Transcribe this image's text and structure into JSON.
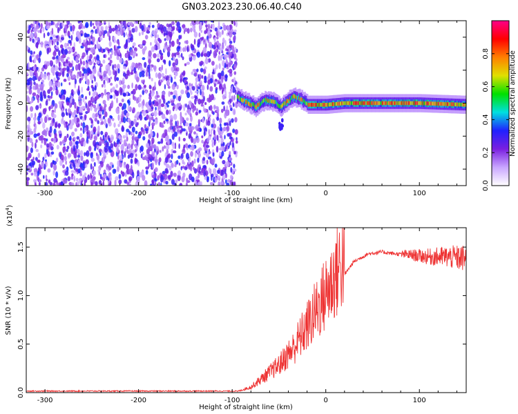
{
  "title": "GN03.2023.230.06.40.C40",
  "chart_data": [
    {
      "type": "heatmap",
      "xlabel": "Height of straight line (km)",
      "ylabel": "Frequency (Hz)",
      "xlim": [
        -320,
        150
      ],
      "ylim": [
        -50,
        50
      ],
      "xticks": [
        -300,
        -200,
        -100,
        0,
        100
      ],
      "yticks": [
        -40,
        -20,
        0,
        20,
        40
      ],
      "colorbar": {
        "label": "Normalized spectral amplitude",
        "range": [
          0,
          1
        ],
        "ticks": [
          "0.0",
          "0.2",
          "0.4",
          "0.6",
          "0.8"
        ],
        "colors": [
          "#ffffff",
          "#c9a6ff",
          "#7a1fe0",
          "#2020ff",
          "#00e0e0",
          "#00e000",
          "#e0e000",
          "#ff8000",
          "#ff0000",
          "#ff0088"
        ]
      },
      "features": {
        "noise_region_x": [
          -320,
          -95
        ],
        "noise_amplitude": [
          0.1,
          0.35
        ],
        "signal_trace": [
          {
            "x": -95,
            "y": 3
          },
          {
            "x": -85,
            "y": 0
          },
          {
            "x": -75,
            "y": -3
          },
          {
            "x": -65,
            "y": 1
          },
          {
            "x": -55,
            "y": 0
          },
          {
            "x": -48,
            "y": -3
          },
          {
            "x": -42,
            "y": 0
          },
          {
            "x": -35,
            "y": 3
          },
          {
            "x": -28,
            "y": 2
          },
          {
            "x": -20,
            "y": -1
          },
          {
            "x": -10,
            "y": -1
          },
          {
            "x": 0,
            "y": -1
          },
          {
            "x": 20,
            "y": 0
          },
          {
            "x": 60,
            "y": 0
          },
          {
            "x": 100,
            "y": 0
          },
          {
            "x": 150,
            "y": -1
          }
        ],
        "signal_peak_amplitude": 0.95
      }
    },
    {
      "type": "line",
      "xlabel": "Height of straight line (km)",
      "ylabel": "SNR (10 * v/v)",
      "y_multiplier": "(x10",
      "y_multiplier_exp": "4",
      "y_multiplier_close": ")",
      "xlim": [
        -320,
        150
      ],
      "ylim": [
        0,
        1.7
      ],
      "xticks": [
        -300,
        -200,
        -100,
        0,
        100
      ],
      "yticks": [
        "0.0",
        "0.5",
        "1.0",
        "1.5"
      ],
      "color": "#ee3333",
      "envelope": [
        {
          "x": -320,
          "y": 0.01
        },
        {
          "x": -95,
          "y": 0.01
        },
        {
          "x": -80,
          "y": 0.05
        },
        {
          "x": -65,
          "y": 0.15
        },
        {
          "x": -50,
          "y": 0.25
        },
        {
          "x": -35,
          "y": 0.4
        },
        {
          "x": -20,
          "y": 0.6
        },
        {
          "x": -10,
          "y": 0.75
        },
        {
          "x": 0,
          "y": 0.9
        },
        {
          "x": 15,
          "y": 1.15
        },
        {
          "x": 30,
          "y": 1.35
        },
        {
          "x": 45,
          "y": 1.43
        },
        {
          "x": 60,
          "y": 1.45
        },
        {
          "x": 75,
          "y": 1.43
        },
        {
          "x": 90,
          "y": 1.42
        },
        {
          "x": 110,
          "y": 1.4
        },
        {
          "x": 130,
          "y": 1.4
        },
        {
          "x": 150,
          "y": 1.38
        }
      ]
    }
  ]
}
